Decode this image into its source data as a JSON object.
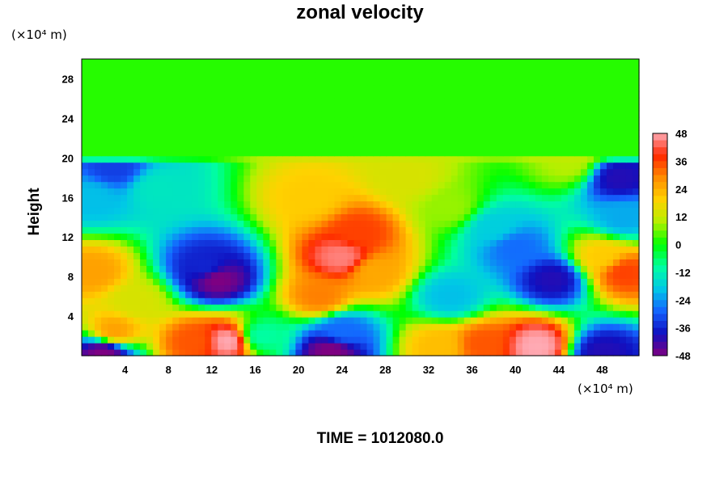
{
  "chart_data": {
    "type": "heatmap",
    "title": "zonal velocity",
    "ylabel": "Height",
    "x_unit": "(×10⁴ m)",
    "y_unit": "(×10⁴ m)",
    "xlim": [
      0,
      51.4
    ],
    "ylim": [
      0,
      30
    ],
    "x_ticks": [
      4,
      8,
      12,
      16,
      20,
      24,
      28,
      32,
      36,
      40,
      44,
      48
    ],
    "y_ticks": [
      4,
      8,
      12,
      16,
      20,
      24,
      28
    ],
    "colorbar": {
      "range": [
        -48,
        48
      ],
      "ticks": [
        48,
        36,
        24,
        12,
        0,
        -12,
        -24,
        -36,
        -48
      ]
    },
    "features": [
      {
        "x": 12.5,
        "y": 7.8,
        "value": -48
      },
      {
        "x": 11.5,
        "y": 9.0,
        "value": -36
      },
      {
        "x": 24.0,
        "y": 10.0,
        "value": 45
      },
      {
        "x": 25.5,
        "y": 12.5,
        "value": 36
      },
      {
        "x": 22.0,
        "y": 6.0,
        "value": 30
      },
      {
        "x": 21.0,
        "y": 16.0,
        "value": 20
      },
      {
        "x": 27.0,
        "y": 8.5,
        "value": 25
      },
      {
        "x": 3.0,
        "y": 19.0,
        "value": -33
      },
      {
        "x": 1.0,
        "y": 16.0,
        "value": -20
      },
      {
        "x": 7.0,
        "y": 17.0,
        "value": -14
      },
      {
        "x": 49.5,
        "y": 18.0,
        "value": -40
      },
      {
        "x": 50.0,
        "y": 14.0,
        "value": -22
      },
      {
        "x": 43.5,
        "y": 7.8,
        "value": -40
      },
      {
        "x": 40.0,
        "y": 11.0,
        "value": -28
      },
      {
        "x": 38.0,
        "y": 13.0,
        "value": -18
      },
      {
        "x": 34.0,
        "y": 6.0,
        "value": -20
      },
      {
        "x": 50.0,
        "y": 8.5,
        "value": 36
      },
      {
        "x": 48.0,
        "y": 10.0,
        "value": 20
      },
      {
        "x": 1.0,
        "y": 8.5,
        "value": 26
      },
      {
        "x": 3.0,
        "y": 2.5,
        "value": 26
      },
      {
        "x": 13.5,
        "y": 1.5,
        "value": 48
      },
      {
        "x": 10.5,
        "y": 1.5,
        "value": 34
      },
      {
        "x": 42.0,
        "y": 1.0,
        "value": 48
      },
      {
        "x": 37.0,
        "y": 1.2,
        "value": 34
      },
      {
        "x": 33.0,
        "y": 1.0,
        "value": 22
      },
      {
        "x": 23.0,
        "y": 0.5,
        "value": -48
      },
      {
        "x": 24.0,
        "y": 2.5,
        "value": -28
      },
      {
        "x": 2.0,
        "y": 0.3,
        "value": -48
      },
      {
        "x": 48.0,
        "y": 0.3,
        "value": -40
      },
      {
        "x": 16.5,
        "y": 2.0,
        "value": -10
      },
      {
        "x": 30.0,
        "y": 18.0,
        "value": 14
      },
      {
        "x": 34.0,
        "y": 15.0,
        "value": 8
      },
      {
        "x": 5.0,
        "y": 5.5,
        "value": 14
      },
      {
        "x": 45.0,
        "y": 19.5,
        "value": 10
      }
    ],
    "grid": false
  },
  "time_label": "TIME = 1012080.0",
  "colors": {
    "scale": [
      "#800080",
      "#1010c0",
      "#1464ff",
      "#00c8e6",
      "#00ffa0",
      "#00ff00",
      "#b4f000",
      "#ffd200",
      "#ff8c00",
      "#ff2800",
      "#ffaab4"
    ]
  }
}
